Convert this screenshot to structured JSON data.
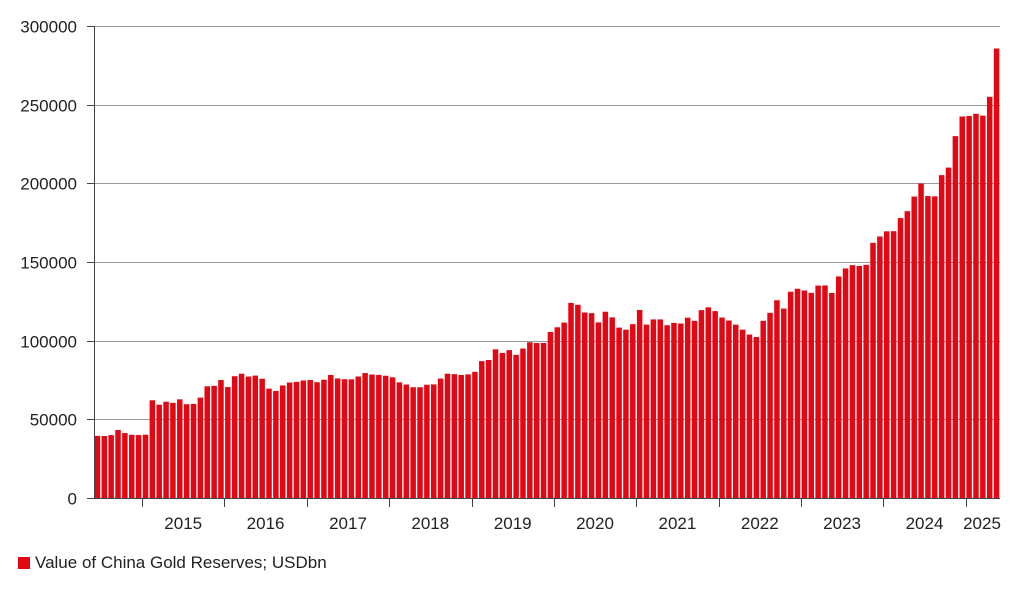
{
  "chart_data": {
    "type": "bar",
    "title": "",
    "xlabel": "",
    "ylabel": "",
    "ylim": [
      0,
      300000
    ],
    "yticks": [
      0,
      50000,
      100000,
      150000,
      200000,
      250000,
      300000
    ],
    "ytick_labels": [
      "0",
      "50000",
      "100000",
      "150000",
      "200000",
      "250000",
      "300000"
    ],
    "grid": true,
    "start_month": "2014-06",
    "year_labels": [
      "2015",
      "2016",
      "2017",
      "2018",
      "2019",
      "2020",
      "2021",
      "2022",
      "2023",
      "2024",
      "2025"
    ],
    "series": [
      {
        "name": "Value of China Gold Reserves; USDbn",
        "color": "#e30613",
        "values": [
          39500,
          39400,
          40000,
          43200,
          41300,
          40200,
          40000,
          40200,
          62100,
          59300,
          61200,
          60500,
          62700,
          59600,
          59800,
          63800,
          71000,
          71300,
          75000,
          70500,
          77400,
          79000,
          77200,
          77800,
          75800,
          69500,
          68000,
          71500,
          73400,
          73800,
          74700,
          75000,
          73600,
          75200,
          78200,
          76000,
          75500,
          75400,
          77200,
          79400,
          78500,
          78200,
          77700,
          76700,
          73500,
          72100,
          70400,
          70400,
          72000,
          72200,
          75900,
          79000,
          78700,
          78200,
          78600,
          80200,
          87000,
          87700,
          94500,
          92200,
          94000,
          91000,
          95000,
          99000,
          98500,
          98500,
          105500,
          108500,
          111500,
          124000,
          122800,
          117900,
          117500,
          111600,
          118400,
          114800,
          108300,
          107000,
          110500,
          119500,
          110200,
          113500,
          113500,
          109800,
          111300,
          110900,
          114600,
          112600,
          119400,
          121200,
          118800,
          114700,
          112800,
          110200,
          107000,
          103900,
          102300,
          112600,
          117700,
          125700,
          120400,
          131100,
          133000,
          131900,
          130400,
          135000,
          135100,
          130300,
          140800,
          145900,
          148000,
          147500,
          148200,
          162200,
          166200,
          169500,
          169600,
          177900,
          182300,
          191600,
          199900,
          191900,
          191700,
          205200,
          210000,
          230000,
          242500,
          242800,
          244200,
          243000,
          255000,
          285700
        ]
      }
    ]
  },
  "legend": {
    "label": "Value of China Gold Reserves; USDbn",
    "color": "#e30613"
  }
}
